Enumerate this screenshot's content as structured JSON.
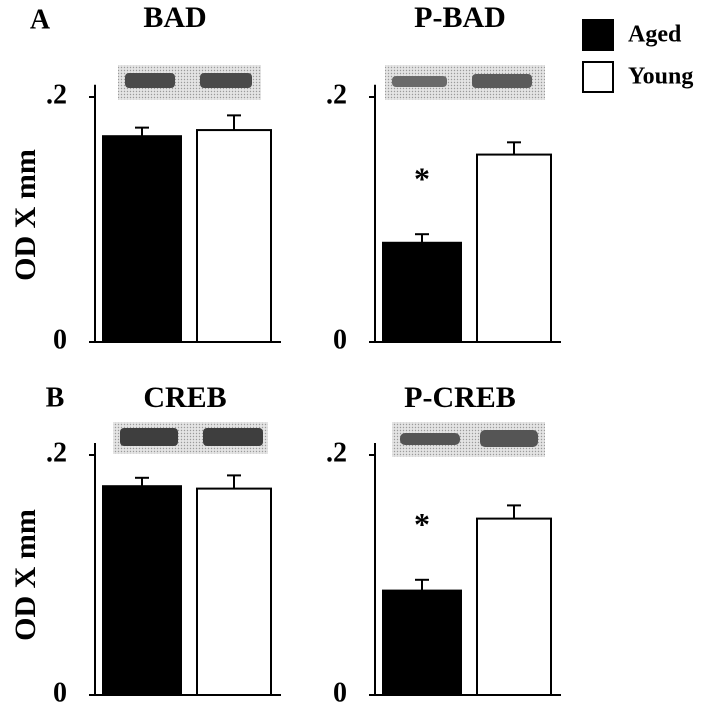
{
  "legend": [
    {
      "name": "Aged",
      "color": "#000000"
    },
    {
      "name": "Young",
      "color": "#ffffff"
    }
  ],
  "chart_data": [
    {
      "type": "bar",
      "panel": "A",
      "title": "BAD",
      "ylabel": "OD X mm",
      "values": [
        0.168,
        0.173
      ],
      "errors": [
        0.007,
        0.012
      ],
      "ylim": [
        0,
        0.21
      ],
      "yticks": [
        0,
        {
          "value": 0.2,
          "label": ".2"
        }
      ]
    },
    {
      "type": "bar",
      "title": "P-BAD",
      "annotation": "*",
      "values": [
        0.081,
        0.153
      ],
      "errors": [
        0.007,
        0.01
      ],
      "ylim": [
        0,
        0.21
      ],
      "yticks": [
        0,
        {
          "value": 0.2,
          "label": ".2"
        }
      ]
    },
    {
      "type": "bar",
      "panel": "B",
      "title": "CREB",
      "ylabel": "OD X mm",
      "values": [
        0.174,
        0.172
      ],
      "errors": [
        0.007,
        0.011
      ],
      "ylim": [
        0,
        0.21
      ],
      "yticks": [
        0,
        {
          "value": 0.2,
          "label": ".2"
        }
      ]
    },
    {
      "type": "bar",
      "title": "P-CREB",
      "annotation": "*",
      "values": [
        0.087,
        0.147
      ],
      "errors": [
        0.009,
        0.011
      ],
      "ylim": [
        0,
        0.21
      ],
      "yticks": [
        0,
        {
          "value": 0.2,
          "label": ".2"
        }
      ]
    }
  ]
}
